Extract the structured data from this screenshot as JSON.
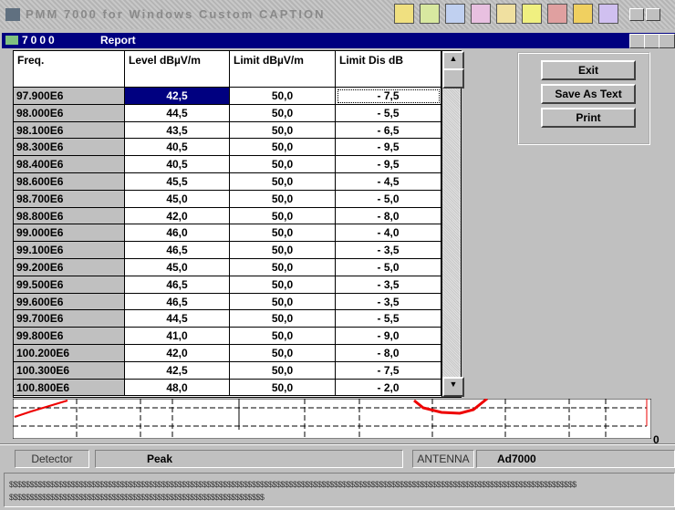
{
  "app": {
    "title": "PMM 7000 for Windows Custom CAPTION"
  },
  "window": {
    "icon_label": "7000",
    "title": "Report"
  },
  "table": {
    "columns": [
      "Freq.",
      "Level dBµV/m",
      "Limit dBµV/m",
      "Limit Dis dB"
    ],
    "rows": [
      [
        "97.900E6",
        "42,5",
        "50,0",
        "- 7,5"
      ],
      [
        "98.000E6",
        "44,5",
        "50,0",
        "- 5,5"
      ],
      [
        "98.100E6",
        "43,5",
        "50,0",
        "- 6,5"
      ],
      [
        "98.300E6",
        "40,5",
        "50,0",
        "- 9,5"
      ],
      [
        "98.400E6",
        "40,5",
        "50,0",
        "- 9,5"
      ],
      [
        "98.600E6",
        "45,5",
        "50,0",
        "- 4,5"
      ],
      [
        "98.700E6",
        "45,0",
        "50,0",
        "- 5,0"
      ],
      [
        "98.800E6",
        "42,0",
        "50,0",
        "- 8,0"
      ],
      [
        "99.000E6",
        "46,0",
        "50,0",
        "- 4,0"
      ],
      [
        "99.100E6",
        "46,5",
        "50,0",
        "- 3,5"
      ],
      [
        "99.200E6",
        "45,0",
        "50,0",
        "- 5,0"
      ],
      [
        "99.500E6",
        "46,5",
        "50,0",
        "- 3,5"
      ],
      [
        "99.600E6",
        "46,5",
        "50,0",
        "- 3,5"
      ],
      [
        "99.700E6",
        "44,5",
        "50,0",
        "- 5,5"
      ],
      [
        "99.800E6",
        "41,0",
        "50,0",
        "- 9,0"
      ],
      [
        "100.200E6",
        "42,0",
        "50,0",
        "- 8,0"
      ],
      [
        "100.300E6",
        "42,5",
        "50,0",
        "- 7,5"
      ],
      [
        "100.800E6",
        "48,0",
        "50,0",
        "- 2,0"
      ]
    ]
  },
  "buttons": [
    "Exit",
    "Save As Text",
    "Print"
  ],
  "graph": {
    "axis_label": "0"
  },
  "status": {
    "detector_label": "Detector",
    "detector_value": "Peak",
    "antenna_label": "ANTENNA",
    "antenna_value": "Ad7000"
  },
  "footer": [
    "$$$$$$$$$$$$$$$$$$$$$$$$$$$$$$$$$$$$$$$$$$$$$$$$$$$$$$$$$$$$$$$$$$$$$$$$$$$$$$$$$$$$$$$$$$$$$$$$$$$$$$$$$$$$$$$$$$$$$$$$$$$$$$$$$$$$$$$$$$",
    "$$$$$$$$$$$$$$$$$$$$$$$$$$$$$$$$$$$$$$$$$$$$$$$$$$$$$$$$$$$$$$"
  ]
}
